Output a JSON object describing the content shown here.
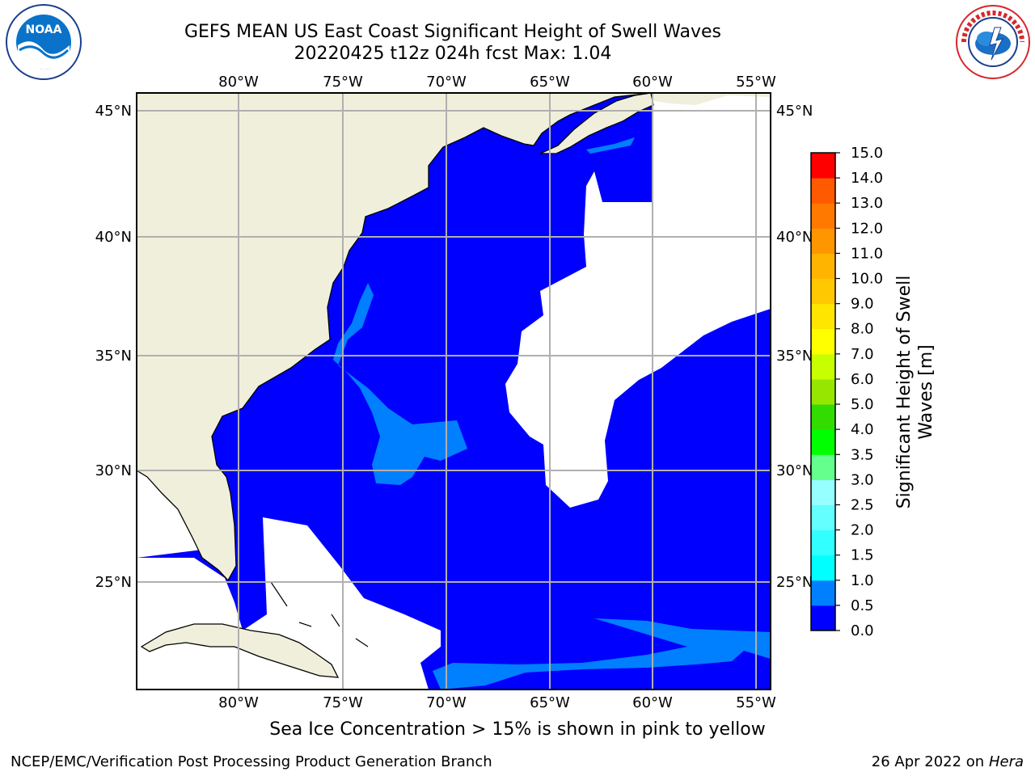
{
  "header": {
    "title_line1": "GEFS MEAN US East Coast Significant Height of Swell Waves",
    "title_line2": "20220425 t12z 024h fcst   Max: 1.04"
  },
  "logos": {
    "left": {
      "icon": "noaa-logo-icon",
      "text": "NOAA"
    },
    "right": {
      "icon": "national-weather-service-logo-icon"
    }
  },
  "map": {
    "lon_labels": [
      "80°W",
      "75°W",
      "70°W",
      "65°W",
      "60°W",
      "55°W"
    ],
    "lat_labels": [
      "45°N",
      "40°N",
      "35°N",
      "30°N",
      "25°N"
    ],
    "colors": {
      "land": "#efefdc",
      "ocean_low": "#0000ff",
      "ocean_mid": "#0080ff",
      "no_data": "#ffffff",
      "grid": "#b0b0b0"
    }
  },
  "colorbar": {
    "label_line1": "Significant Height of Swell",
    "label_line2": "Waves [m]",
    "ticks": [
      "0.0",
      "0.5",
      "1.0",
      "1.5",
      "2.0",
      "2.5",
      "3.0",
      "3.5",
      "4.0",
      "5.0",
      "6.0",
      "7.0",
      "8.0",
      "9.0",
      "10.0",
      "11.0",
      "12.0",
      "13.0",
      "14.0",
      "15.0"
    ],
    "colors": [
      "#0000ff",
      "#0080ff",
      "#00ffff",
      "#32ffff",
      "#64ffff",
      "#96ffff",
      "#64ff8c",
      "#00ff00",
      "#32dc00",
      "#96e600",
      "#c8ff00",
      "#ffff00",
      "#ffe600",
      "#ffc800",
      "#ffb400",
      "#ff9600",
      "#ff7800",
      "#ff5a00",
      "#ff0000"
    ]
  },
  "footer": {
    "sea_ice_note": "Sea Ice Concentration > 15% is shown in pink to yellow",
    "credit_left": "NCEP/EMC/Verification Post Processing Product Generation Branch",
    "credit_date": "26 Apr 2022 on ",
    "credit_machine": "Hera"
  }
}
